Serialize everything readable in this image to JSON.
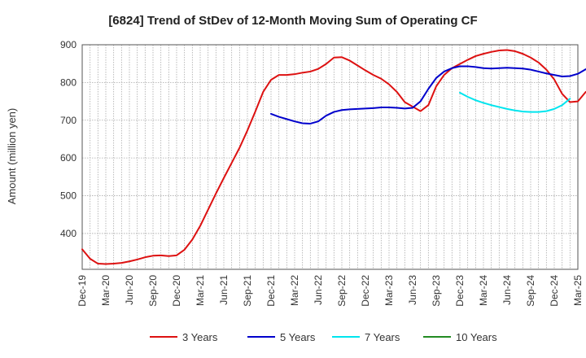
{
  "chart_data": {
    "type": "line",
    "title": "[6824]  Trend of StDev of 12-Month Moving Sum of Operating CF",
    "ylabel": "Amount (million yen)",
    "xlabel": "",
    "ylim": [
      305,
      900
    ],
    "yticks": [
      400,
      500,
      600,
      700,
      800,
      900
    ],
    "grid": true,
    "legend_position": "bottom",
    "x_tick_labels": [
      "Dec-19",
      "Mar-20",
      "Jun-20",
      "Sep-20",
      "Dec-20",
      "Mar-21",
      "Jun-21",
      "Sep-21",
      "Dec-21",
      "Mar-22",
      "Jun-22",
      "Sep-22",
      "Dec-22",
      "Mar-23",
      "Jun-23",
      "Sep-23",
      "Dec-23",
      "Mar-24",
      "Jun-24",
      "Sep-24",
      "Dec-24",
      "Mar-25"
    ],
    "series": [
      {
        "name": "3 Years",
        "color": "#dd1111",
        "start_index": 0,
        "values": [
          358,
          333,
          320,
          319,
          320,
          322,
          326,
          331,
          337,
          341,
          342,
          340,
          342,
          357,
          384,
          420,
          463,
          506,
          547,
          587,
          627,
          673,
          723,
          775,
          807,
          820,
          820,
          822,
          826,
          829,
          836,
          849,
          866,
          867,
          858,
          845,
          832,
          820,
          810,
          795,
          775,
          748,
          736,
          724,
          740,
          790,
          820,
          838,
          849,
          860,
          870,
          876,
          881,
          885,
          886,
          883,
          876,
          866,
          853,
          834,
          808,
          770,
          748,
          750,
          775
        ]
      },
      {
        "name": "5 Years",
        "color": "#0000cc",
        "start_index": 24,
        "values": [
          717,
          709,
          703,
          697,
          692,
          691,
          697,
          712,
          722,
          727,
          729,
          730,
          731,
          732,
          734,
          734,
          733,
          731,
          733,
          750,
          783,
          812,
          829,
          838,
          843,
          843,
          841,
          838,
          837,
          838,
          839,
          838,
          837,
          834,
          829,
          824,
          820,
          816,
          817,
          823,
          835
        ]
      },
      {
        "name": "7 Years",
        "color": "#00e5ee",
        "start_index": 48,
        "values": [
          773,
          762,
          753,
          746,
          740,
          735,
          730,
          726,
          723,
          722,
          722,
          724,
          730,
          740,
          757
        ]
      },
      {
        "name": "10 Years",
        "color": "#228b22",
        "start_index": 0,
        "values": []
      }
    ]
  }
}
